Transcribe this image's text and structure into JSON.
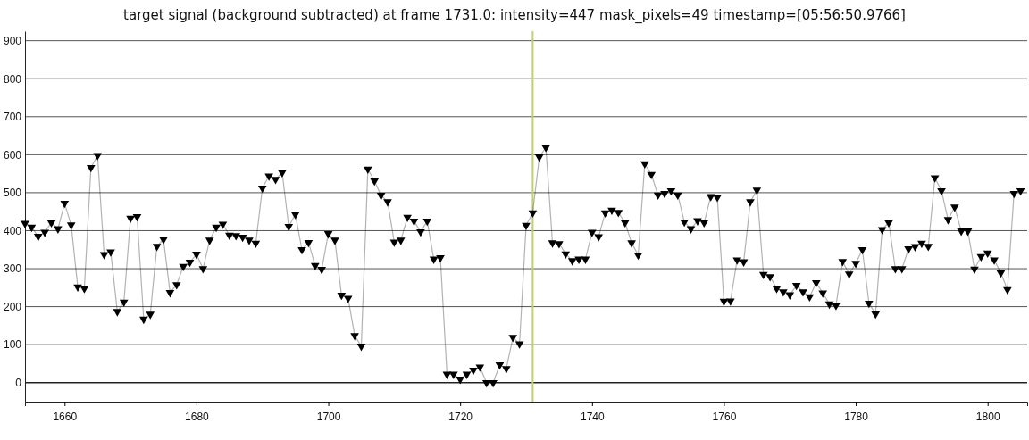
{
  "chart_data": {
    "type": "line",
    "title": "target signal (background subtracted) at frame 1731.0: intensity=447 mask_pixels=49 timestamp=[05:56:50.9766]",
    "x": [
      1654,
      1655,
      1656,
      1657,
      1658,
      1659,
      1660,
      1661,
      1662,
      1663,
      1664,
      1665,
      1666,
      1667,
      1668,
      1669,
      1670,
      1671,
      1672,
      1673,
      1674,
      1675,
      1676,
      1677,
      1678,
      1679,
      1680,
      1681,
      1682,
      1683,
      1684,
      1685,
      1686,
      1687,
      1688,
      1689,
      1690,
      1691,
      1692,
      1693,
      1694,
      1695,
      1696,
      1697,
      1698,
      1699,
      1700,
      1701,
      1702,
      1703,
      1704,
      1705,
      1706,
      1707,
      1708,
      1709,
      1710,
      1711,
      1712,
      1713,
      1714,
      1715,
      1716,
      1717,
      1718,
      1719,
      1720,
      1721,
      1722,
      1723,
      1724,
      1725,
      1726,
      1727,
      1728,
      1729,
      1730,
      1731,
      1732,
      1733,
      1734,
      1735,
      1736,
      1737,
      1738,
      1739,
      1740,
      1741,
      1742,
      1743,
      1744,
      1745,
      1746,
      1747,
      1748,
      1749,
      1750,
      1751,
      1752,
      1753,
      1754,
      1755,
      1756,
      1757,
      1758,
      1759,
      1760,
      1761,
      1762,
      1763,
      1764,
      1765,
      1766,
      1767,
      1768,
      1769,
      1770,
      1771,
      1772,
      1773,
      1774,
      1775,
      1776,
      1777,
      1778,
      1779,
      1780,
      1781,
      1782,
      1783,
      1784,
      1785,
      1786,
      1787,
      1788,
      1789,
      1790,
      1791,
      1792,
      1793,
      1794,
      1795,
      1796,
      1797,
      1798,
      1799,
      1800,
      1801,
      1802,
      1803,
      1804,
      1805
    ],
    "series": [
      {
        "color": "#000000",
        "values": [
          419,
          409,
          385,
          396,
          421,
          405,
          472,
          415,
          252,
          248,
          566,
          598,
          337,
          344,
          187,
          212,
          433,
          437,
          167,
          180,
          359,
          377,
          237,
          258,
          306,
          317,
          338,
          300,
          375,
          409,
          417,
          388,
          387,
          383,
          375,
          367,
          512,
          544,
          535,
          553,
          411,
          443,
          350,
          369,
          308,
          298,
          392,
          375,
          230,
          222,
          124,
          96,
          562,
          531,
          493,
          476,
          370,
          375,
          435,
          425,
          397,
          425,
          325,
          329,
          22,
          22,
          9,
          22,
          33,
          41,
          0,
          0,
          47,
          37,
          119,
          102,
          414,
          447,
          594,
          619,
          368,
          366,
          339,
          321,
          325,
          325,
          396,
          384,
          447,
          454,
          448,
          421,
          368,
          336,
          576,
          548,
          494,
          498,
          505,
          494,
          423,
          405,
          426,
          421,
          490,
          488,
          214,
          215,
          323,
          318,
          476,
          507,
          285,
          279,
          248,
          239,
          231,
          256,
          239,
          226,
          263,
          236,
          207,
          203,
          319,
          286,
          314,
          350,
          209,
          181,
          403,
          421,
          300,
          300,
          352,
          358,
          367,
          359,
          539,
          505,
          429,
          462,
          399,
          399,
          299,
          332,
          341,
          323,
          289,
          245,
          498,
          505
        ]
      }
    ],
    "xlim": [
      1654,
      1806
    ],
    "xticks": [
      1660,
      1680,
      1700,
      1720,
      1740,
      1760,
      1780,
      1800
    ],
    "ylim": [
      -50,
      925
    ],
    "yticks": [
      0,
      100,
      200,
      300,
      400,
      500,
      600,
      700,
      800,
      900
    ],
    "grid": "y",
    "marker": "triangle",
    "line_style": "solid",
    "ref_lines": [
      {
        "axis": "x",
        "value": 1731,
        "color": "#c2cf6e"
      }
    ]
  }
}
